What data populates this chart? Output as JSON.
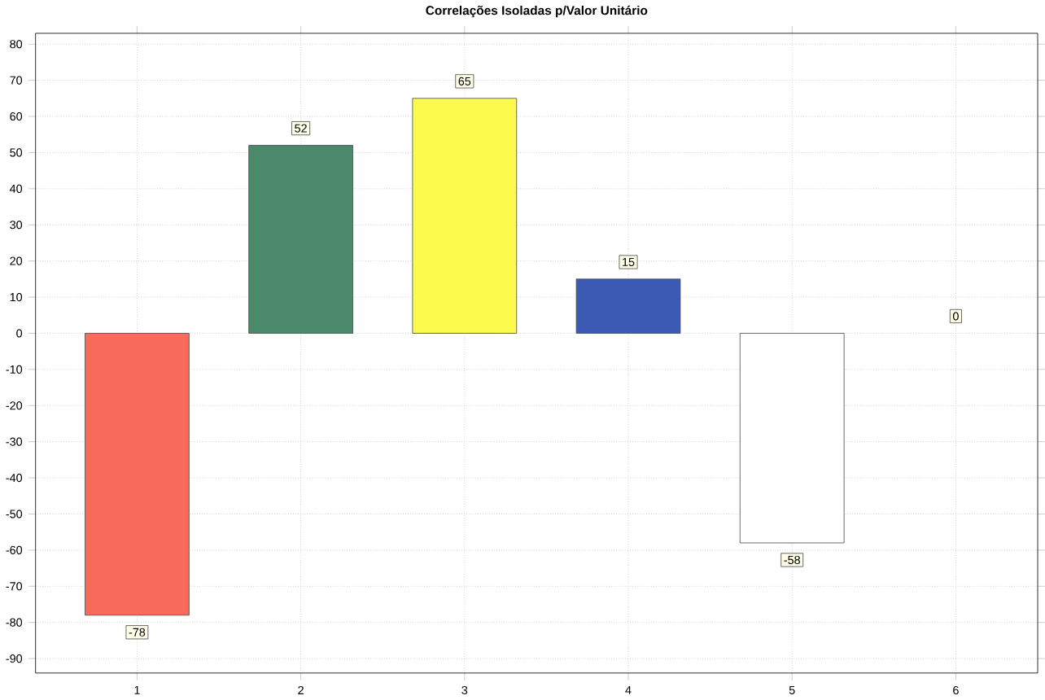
{
  "chart_data": {
    "type": "bar",
    "title": "Correlações Isoladas p/Valor Unitário",
    "categories": [
      "1",
      "2",
      "3",
      "4",
      "5",
      "6"
    ],
    "values": [
      -78,
      52,
      65,
      15,
      -58,
      0
    ],
    "colors": [
      "#f86a5a",
      "#4a8a6a",
      "#fcfa4c",
      "#3a5ab4",
      "#ffffff",
      "#ffffff"
    ],
    "ylim": [
      -94,
      83
    ],
    "yticks": [
      -90,
      -80,
      -70,
      -60,
      -50,
      -40,
      -30,
      -20,
      -10,
      0,
      10,
      20,
      30,
      40,
      50,
      60,
      70,
      80
    ],
    "grid": true,
    "data_labels": true
  }
}
